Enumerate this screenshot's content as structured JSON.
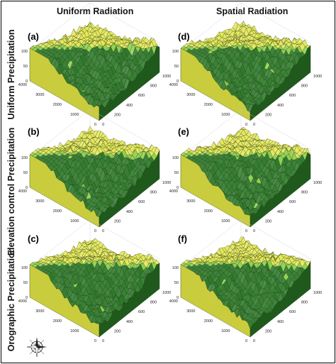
{
  "column_titles": [
    "Uniform Radiation",
    "Spatial  Radiation"
  ],
  "row_titles": [
    "Uniform Precipitation",
    "Elevation control Precipitation",
    "Orographic Precipitation"
  ],
  "panels": [
    {
      "label": "(a)",
      "xticks": [
        "0",
        "1000",
        "2000",
        "3000",
        "4000"
      ],
      "yticks": [
        "0",
        "200",
        "400",
        "600",
        "800",
        "1000"
      ],
      "zticks": [
        "0",
        "50",
        "100"
      ]
    },
    {
      "label": "(d)",
      "xticks": [
        "0",
        "1000",
        "2000",
        "3000",
        "4000"
      ],
      "yticks": [
        "0",
        "200",
        "400",
        "600",
        "800",
        "1000"
      ],
      "zticks": [
        "0",
        "50",
        "100"
      ]
    },
    {
      "label": "(b)",
      "xticks": [
        "0",
        "1000",
        "2000",
        "3000",
        "4000"
      ],
      "yticks": [
        "0",
        "200",
        "400",
        "600",
        "800",
        "1000"
      ],
      "zticks": [
        "0",
        "50",
        "100"
      ]
    },
    {
      "label": "(e)",
      "xticks": [
        "0",
        "1000",
        "2000",
        "3000",
        "4000"
      ],
      "yticks": [
        "0",
        "200",
        "400",
        "600",
        "800",
        "1000"
      ],
      "zticks": [
        "0",
        "50",
        "100"
      ]
    },
    {
      "label": "(c)",
      "xticks": [
        "0",
        "1000",
        "2000",
        "3000",
        "4000"
      ],
      "yticks": [
        "0",
        "200",
        "400",
        "600",
        "800",
        "1000"
      ],
      "zticks": [
        "0",
        "50",
        "100"
      ]
    },
    {
      "label": "(f)",
      "xticks": [
        "0",
        "1000",
        "2000",
        "3000",
        "4000"
      ],
      "yticks": [
        "0",
        "200",
        "400",
        "600",
        "800",
        "1000"
      ],
      "zticks": [
        "0",
        "50",
        "100"
      ]
    }
  ],
  "colors": {
    "yellow_zone": "#e6e85a",
    "green_zone": "#2f7a2a",
    "light_green_zone": "#8fd04a",
    "wire": "#142a10"
  },
  "icons": {
    "compass": "compass-rose-icon"
  }
}
